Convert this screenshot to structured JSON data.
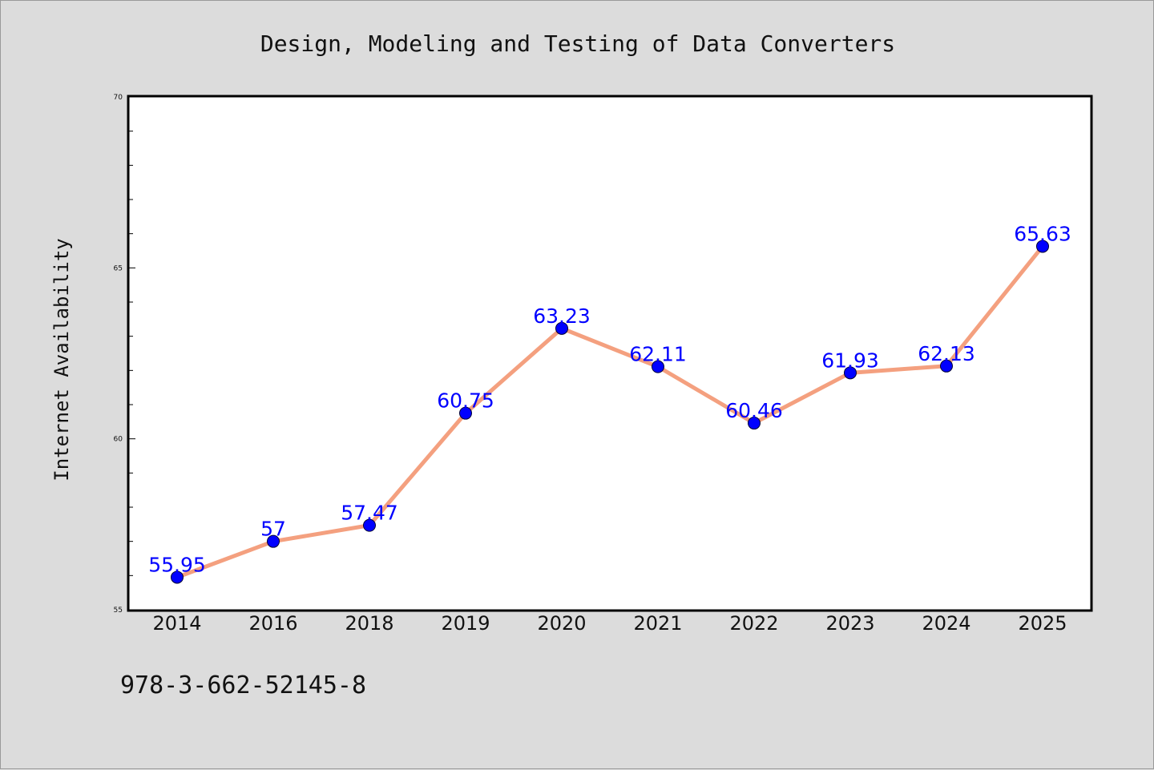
{
  "chart_data": {
    "type": "line",
    "title": "Design, Modeling and Testing of Data Converters",
    "ylabel": "Internet Availability",
    "xlabel": "",
    "categories": [
      "2014",
      "2016",
      "2018",
      "2019",
      "2020",
      "2021",
      "2022",
      "2023",
      "2024",
      "2025"
    ],
    "series": [
      {
        "values": [
          55.95,
          57,
          57.47,
          60.75,
          63.23,
          62.11,
          60.46,
          61.93,
          62.13,
          65.63
        ],
        "labels": [
          "55.95",
          "57",
          "57.47",
          "60.75",
          "63.23",
          "62.11",
          "60.46",
          "61.93",
          "62.13",
          "65.63"
        ],
        "line_color": "#f4a07f",
        "marker_color": "#0000ff"
      }
    ],
    "ylim": [
      55,
      70
    ],
    "yticks": [
      "55",
      "60",
      "65",
      "70"
    ],
    "grid": false,
    "legend": "none"
  },
  "footer": {
    "isbn": "978-3-662-52145-8"
  },
  "colors": {
    "background": "#dcdcdc",
    "plot_background": "#ffffff",
    "axis": "#000000",
    "label": "#0000ff"
  }
}
